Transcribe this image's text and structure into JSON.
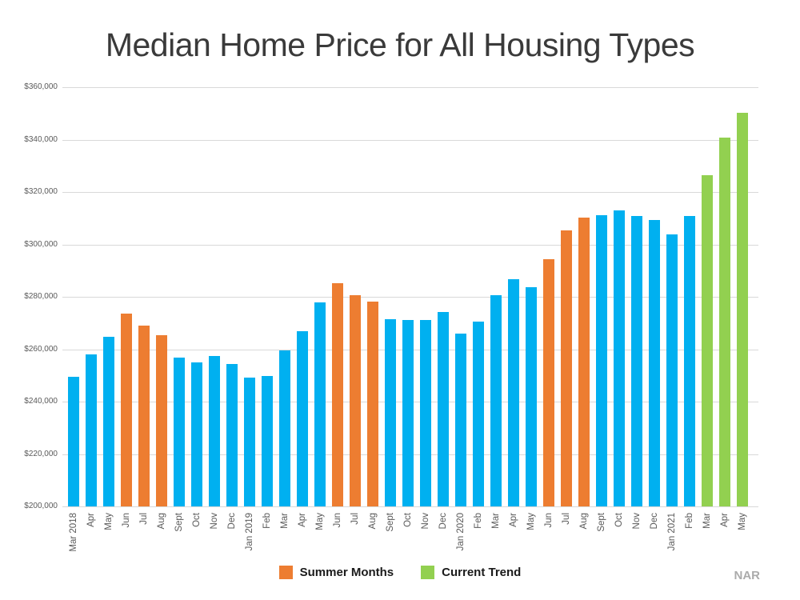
{
  "title": "Median Home Price for All Housing Types",
  "source_label": "NAR",
  "colors": {
    "regular": "#00B0F0",
    "summer": "#ED7D31",
    "trend": "#92D050",
    "grid": "#D9D9D9",
    "title_text": "#3A3A3A",
    "axis_text": "#595959",
    "source_text": "#ABABAB"
  },
  "legend": {
    "items": [
      {
        "label": "Summer Months",
        "group": "summer"
      },
      {
        "label": "Current Trend",
        "group": "trend"
      }
    ],
    "position": "bottom"
  },
  "chart_data": {
    "type": "bar",
    "title": "Median Home Price for All Housing Types",
    "xlabel": "",
    "ylabel": "",
    "ylim": [
      200000,
      360000
    ],
    "y_step": 20000,
    "grid": true,
    "legend_position": "bottom",
    "y_ticks": [
      "$200,000",
      "$220,000",
      "$240,000",
      "$260,000",
      "$280,000",
      "$300,000",
      "$320,000",
      "$340,000",
      "$360,000"
    ],
    "categories": [
      "Mar 2018",
      "Apr",
      "May",
      "Jun",
      "Jul",
      "Aug",
      "Sept",
      "Oct",
      "Nov",
      "Dec",
      "Jan 2019",
      "Feb",
      "Mar",
      "Apr",
      "May",
      "Jun",
      "Jul",
      "Aug",
      "Sept",
      "Oct",
      "Nov",
      "Dec",
      "Jan 2020",
      "Feb",
      "Mar",
      "Apr",
      "May",
      "Jun",
      "Jul",
      "Aug",
      "Sept",
      "Oct",
      "Nov",
      "Dec",
      "Jan 2021",
      "Feb",
      "Mar",
      "Apr",
      "May"
    ],
    "values": [
      249600,
      257900,
      264700,
      273700,
      269100,
      265400,
      256900,
      255100,
      257400,
      254500,
      249300,
      249800,
      259600,
      266900,
      278000,
      285300,
      280500,
      278300,
      271300,
      271000,
      271200,
      274200,
      265900,
      270400,
      280500,
      286800,
      283600,
      294300,
      305400,
      310200,
      311200,
      312900,
      310700,
      309200,
      303800,
      310800,
      326300,
      340800,
      350100
    ],
    "groups": [
      "regular",
      "regular",
      "regular",
      "summer",
      "summer",
      "summer",
      "regular",
      "regular",
      "regular",
      "regular",
      "regular",
      "regular",
      "regular",
      "regular",
      "regular",
      "summer",
      "summer",
      "summer",
      "regular",
      "regular",
      "regular",
      "regular",
      "regular",
      "regular",
      "regular",
      "regular",
      "regular",
      "summer",
      "summer",
      "summer",
      "regular",
      "regular",
      "regular",
      "regular",
      "regular",
      "regular",
      "trend",
      "trend",
      "trend"
    ]
  }
}
